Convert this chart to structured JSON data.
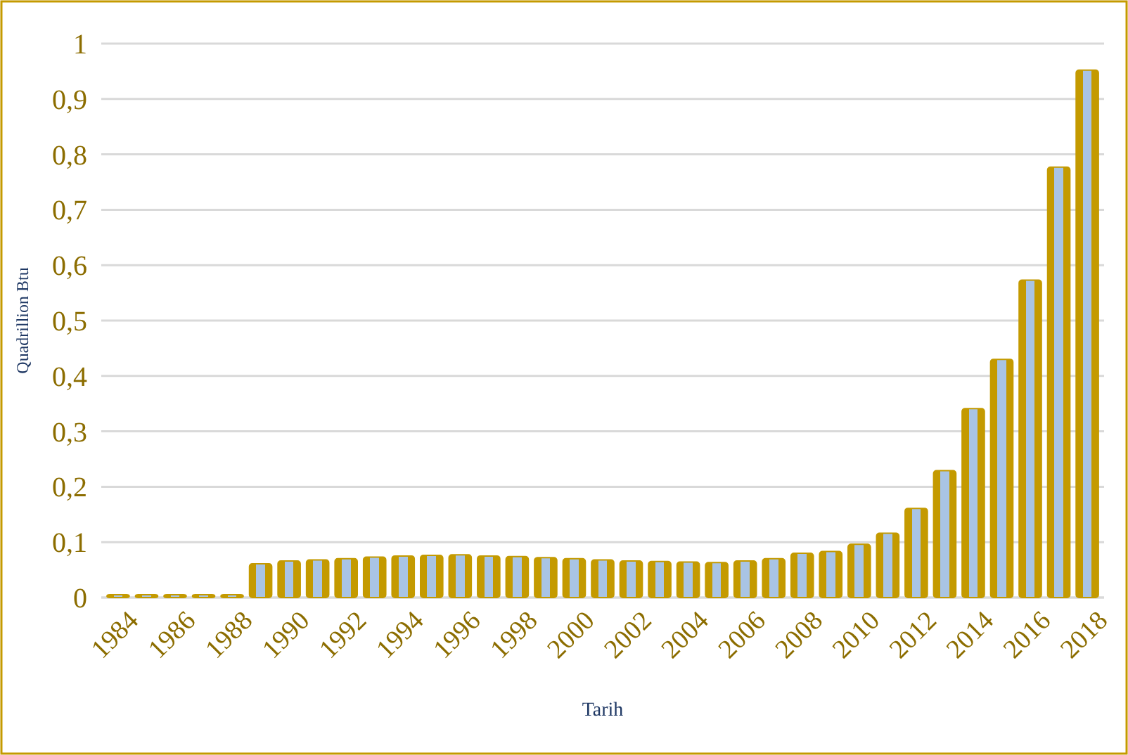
{
  "chart_data": {
    "type": "bar",
    "xlabel": "Tarih",
    "ylabel": "Quadrillion Btu",
    "categories": [
      "1984",
      null,
      "1986",
      null,
      "1988",
      null,
      "1990",
      null,
      "1992",
      null,
      "1994",
      null,
      "1996",
      null,
      "1998",
      null,
      "2000",
      null,
      "2002",
      null,
      "2004",
      null,
      "2006",
      null,
      "2008",
      null,
      "2010",
      null,
      "2012",
      null,
      "2014",
      null,
      "2016",
      null,
      "2018"
    ],
    "values": [
      0.005,
      0.005,
      0.005,
      0.005,
      0.005,
      0.061,
      0.066,
      0.068,
      0.07,
      0.073,
      0.075,
      0.076,
      0.077,
      0.075,
      0.074,
      0.072,
      0.07,
      0.068,
      0.066,
      0.065,
      0.064,
      0.063,
      0.066,
      0.07,
      0.08,
      0.083,
      0.096,
      0.116,
      0.161,
      0.229,
      0.341,
      0.43,
      0.573,
      0.777,
      0.952
    ],
    "color": "#c49a00",
    "ylim": [
      0,
      1
    ],
    "yticks": [
      0,
      {
        "value": 0.1,
        "label": "0,1"
      },
      {
        "value": 0.2,
        "label": "0,2"
      },
      {
        "value": 0.3,
        "label": "0,3"
      },
      {
        "value": 0.4,
        "label": "0,4"
      },
      {
        "value": 0.5,
        "label": "0,5"
      },
      {
        "value": 0.6,
        "label": "0,6"
      },
      {
        "value": 0.7,
        "label": "0,7"
      },
      {
        "value": 0.8,
        "label": "0,8"
      },
      {
        "value": 0.9,
        "label": "0,9"
      },
      1
    ],
    "grid": "y"
  }
}
